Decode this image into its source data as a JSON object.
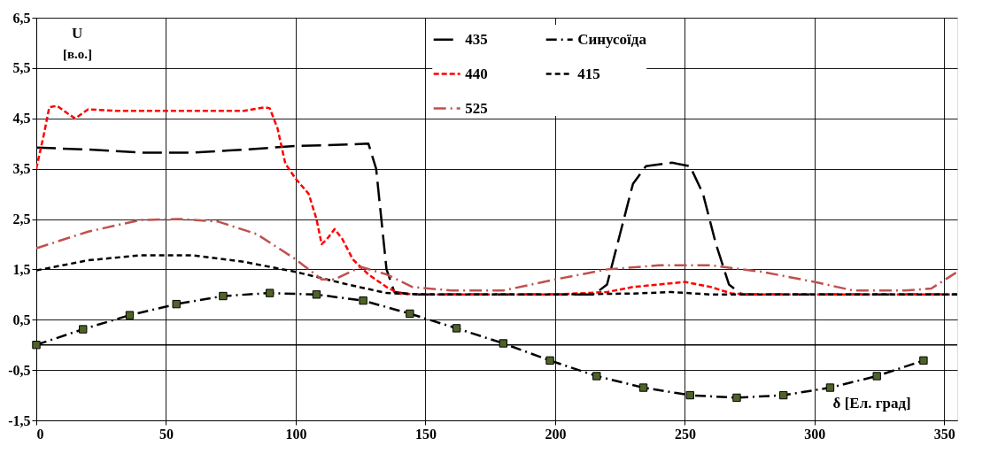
{
  "chart_data": {
    "type": "line",
    "xlabel": "δ [Ел. град]",
    "ylabel": "U [в.о.]",
    "xlim": [
      0,
      355
    ],
    "xticks": [
      0,
      50,
      100,
      150,
      200,
      250,
      300,
      350
    ],
    "ylim": [
      -1.5,
      6.5
    ],
    "yticks": [
      {
        "value": -1.5,
        "label": "-1,5"
      },
      {
        "value": -0.5,
        "label": "-0,5"
      },
      {
        "value": 0.5,
        "label": "0,5"
      },
      {
        "value": 1.5,
        "label": "1,5"
      },
      {
        "value": 2.5,
        "label": "2,5"
      },
      {
        "value": 3.5,
        "label": "3,5"
      },
      {
        "value": 4.5,
        "label": "4,5"
      },
      {
        "value": 5.5,
        "label": "5,5"
      },
      {
        "value": 6.5,
        "label": "6,5"
      }
    ],
    "grid": true,
    "legend": "top",
    "line_style": "dashed",
    "ref_lines": [
      {
        "axis": "y",
        "value": 0,
        "color": "#000000"
      }
    ],
    "series": [
      {
        "name": "435",
        "color": "#000000",
        "marker": "none",
        "x": [
          0,
          20,
          40,
          60,
          80,
          100,
          120,
          128,
          131,
          133,
          135,
          138,
          145,
          200,
          215,
          220,
          225,
          230,
          235,
          245,
          252,
          257,
          262,
          267,
          272,
          300,
          355
        ],
        "values": [
          3.92,
          3.88,
          3.82,
          3.82,
          3.88,
          3.95,
          3.98,
          4.0,
          3.5,
          2.5,
          1.5,
          1.05,
          1.0,
          1.0,
          1.0,
          1.2,
          2.2,
          3.2,
          3.55,
          3.62,
          3.55,
          3.0,
          2.0,
          1.2,
          1.0,
          1.0,
          1.0
        ]
      },
      {
        "name": "Синусоїда",
        "color": "#000000",
        "marker": "square",
        "x": [
          0,
          18,
          36,
          54,
          72,
          90,
          108,
          126,
          144,
          162,
          180,
          198,
          216,
          234,
          252,
          270,
          288,
          306,
          324,
          342
        ],
        "values": [
          0,
          0.31,
          0.59,
          0.81,
          0.97,
          1.03,
          1.0,
          0.88,
          0.62,
          0.33,
          0.03,
          -0.31,
          -0.62,
          -0.85,
          -1.0,
          -1.05,
          -1.0,
          -0.85,
          -0.62,
          -0.31
        ]
      },
      {
        "name": "440",
        "color": "#ff0000",
        "marker": "none",
        "x": [
          0,
          3,
          5,
          8,
          12,
          15,
          20,
          30,
          50,
          70,
          80,
          88,
          90,
          93,
          96,
          100,
          105,
          108,
          110,
          112,
          115,
          118,
          122,
          128,
          135,
          140,
          150,
          200,
          220,
          230,
          250,
          260,
          268,
          280,
          355
        ],
        "values": [
          3.5,
          4.2,
          4.72,
          4.75,
          4.6,
          4.5,
          4.68,
          4.65,
          4.65,
          4.65,
          4.65,
          4.72,
          4.7,
          4.3,
          3.6,
          3.3,
          3.0,
          2.5,
          2.0,
          2.1,
          2.3,
          2.1,
          1.7,
          1.4,
          1.15,
          1.02,
          1.0,
          1.0,
          1.05,
          1.15,
          1.25,
          1.15,
          1.02,
          1.0,
          1.0
        ]
      },
      {
        "name": "415",
        "color": "#000000",
        "marker": "none",
        "x": [
          0,
          20,
          40,
          60,
          80,
          100,
          120,
          135,
          150,
          200,
          230,
          245,
          260,
          355
        ],
        "values": [
          1.48,
          1.68,
          1.78,
          1.78,
          1.65,
          1.45,
          1.2,
          1.03,
          1.0,
          1.0,
          1.02,
          1.05,
          1.0,
          1.0
        ]
      },
      {
        "name": "525",
        "color": "#c0504d",
        "marker": "none",
        "x": [
          0,
          20,
          40,
          55,
          70,
          85,
          100,
          110,
          115,
          125,
          135,
          145,
          160,
          180,
          200,
          220,
          240,
          260,
          280,
          300,
          315,
          335,
          345,
          355
        ],
        "values": [
          1.92,
          2.25,
          2.48,
          2.5,
          2.45,
          2.2,
          1.7,
          1.3,
          1.3,
          1.55,
          1.4,
          1.15,
          1.08,
          1.08,
          1.3,
          1.5,
          1.58,
          1.58,
          1.45,
          1.25,
          1.08,
          1.08,
          1.12,
          1.45
        ]
      }
    ]
  }
}
